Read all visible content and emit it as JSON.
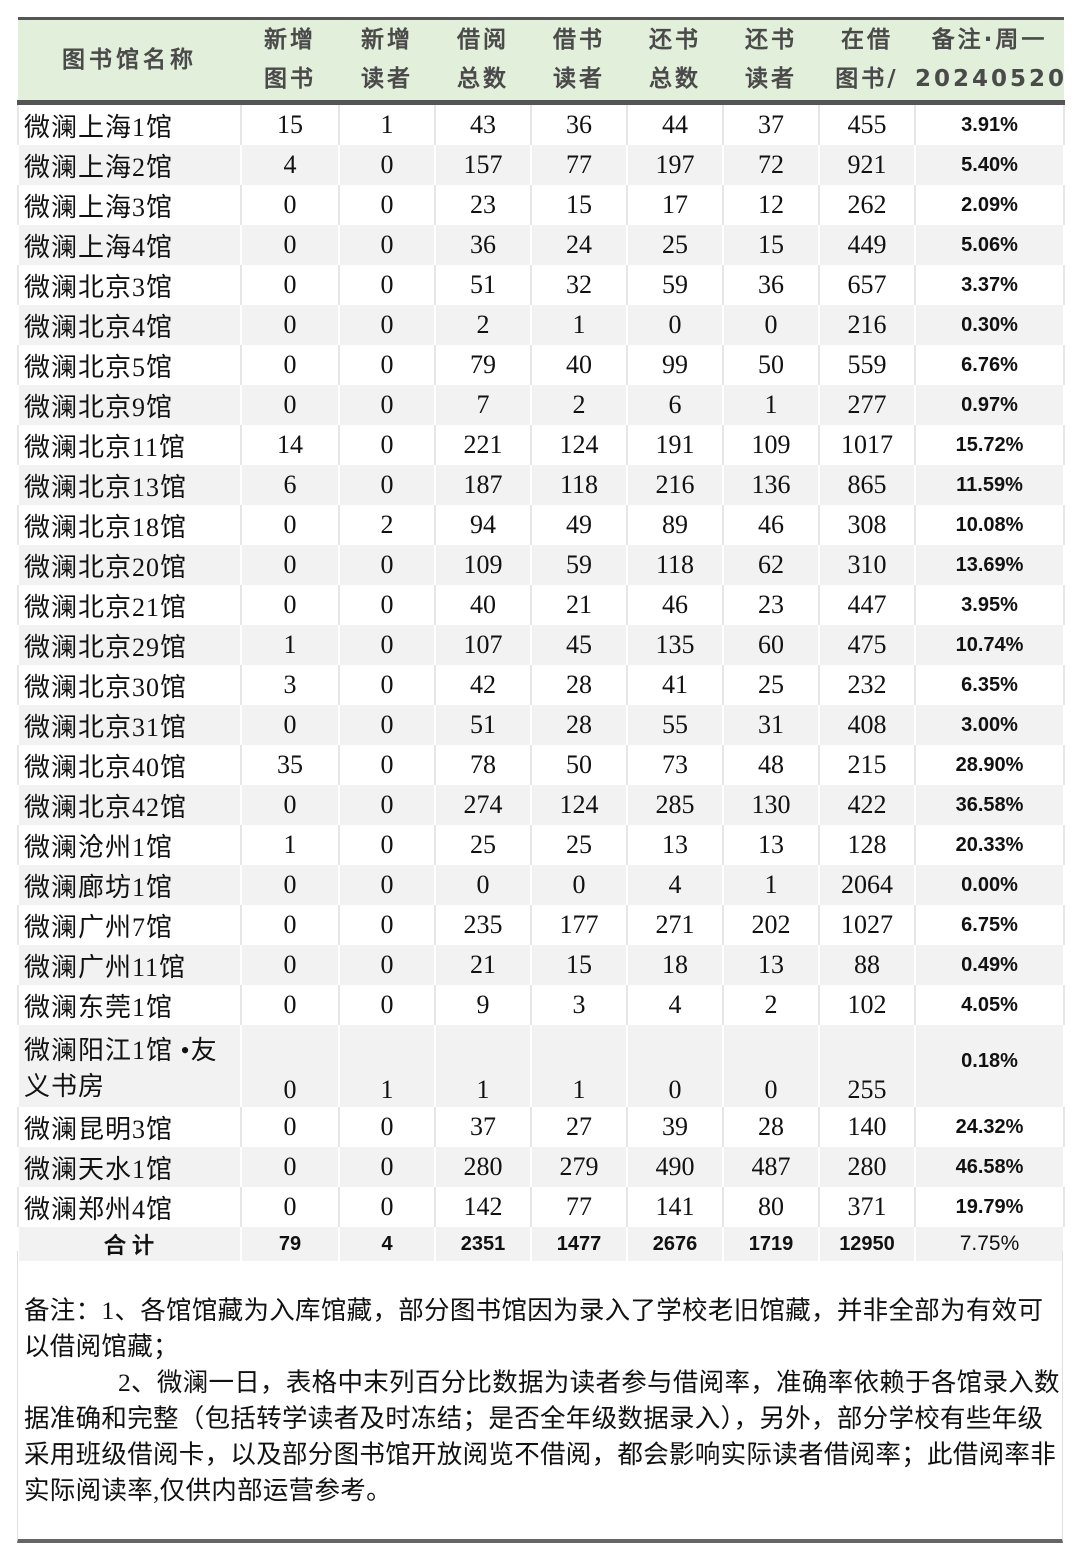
{
  "table": {
    "headers": [
      [
        "图书馆名称"
      ],
      [
        "新增",
        "图书"
      ],
      [
        "新增",
        "读者"
      ],
      [
        "借阅",
        "总数"
      ],
      [
        "借书",
        "读者"
      ],
      [
        "还书",
        "总数"
      ],
      [
        "还书",
        "读者"
      ],
      [
        "在借",
        "图书/"
      ],
      [
        "备注·周一",
        "20240520"
      ]
    ],
    "rows": [
      [
        "微澜上海1馆",
        "15",
        "1",
        "43",
        "36",
        "44",
        "37",
        "455",
        "3.91%"
      ],
      [
        "微澜上海2馆",
        "4",
        "0",
        "157",
        "77",
        "197",
        "72",
        "921",
        "5.40%"
      ],
      [
        "微澜上海3馆",
        "0",
        "0",
        "23",
        "15",
        "17",
        "12",
        "262",
        "2.09%"
      ],
      [
        "微澜上海4馆",
        "0",
        "0",
        "36",
        "24",
        "25",
        "15",
        "449",
        "5.06%"
      ],
      [
        "微澜北京3馆",
        "0",
        "0",
        "51",
        "32",
        "59",
        "36",
        "657",
        "3.37%"
      ],
      [
        "微澜北京4馆",
        "0",
        "0",
        "2",
        "1",
        "0",
        "0",
        "216",
        "0.30%"
      ],
      [
        "微澜北京5馆",
        "0",
        "0",
        "79",
        "40",
        "99",
        "50",
        "559",
        "6.76%"
      ],
      [
        "微澜北京9馆",
        "0",
        "0",
        "7",
        "2",
        "6",
        "1",
        "277",
        "0.97%"
      ],
      [
        "微澜北京11馆",
        "14",
        "0",
        "221",
        "124",
        "191",
        "109",
        "1017",
        "15.72%"
      ],
      [
        "微澜北京13馆",
        "6",
        "0",
        "187",
        "118",
        "216",
        "136",
        "865",
        "11.59%"
      ],
      [
        "微澜北京18馆",
        "0",
        "2",
        "94",
        "49",
        "89",
        "46",
        "308",
        "10.08%"
      ],
      [
        "微澜北京20馆",
        "0",
        "0",
        "109",
        "59",
        "118",
        "62",
        "310",
        "13.69%"
      ],
      [
        "微澜北京21馆",
        "0",
        "0",
        "40",
        "21",
        "46",
        "23",
        "447",
        "3.95%"
      ],
      [
        "微澜北京29馆",
        "1",
        "0",
        "107",
        "45",
        "135",
        "60",
        "475",
        "10.74%"
      ],
      [
        "微澜北京30馆",
        "3",
        "0",
        "42",
        "28",
        "41",
        "25",
        "232",
        "6.35%"
      ],
      [
        "微澜北京31馆",
        "0",
        "0",
        "51",
        "28",
        "55",
        "31",
        "408",
        "3.00%"
      ],
      [
        "微澜北京40馆",
        "35",
        "0",
        "78",
        "50",
        "73",
        "48",
        "215",
        "28.90%"
      ],
      [
        "微澜北京42馆",
        "0",
        "0",
        "274",
        "124",
        "285",
        "130",
        "422",
        "36.58%"
      ],
      [
        "微澜沧州1馆",
        "1",
        "0",
        "25",
        "25",
        "13",
        "13",
        "128",
        "20.33%"
      ],
      [
        "微澜廊坊1馆",
        "0",
        "0",
        "0",
        "0",
        "4",
        "1",
        "2064",
        "0.00%"
      ],
      [
        "微澜广州7馆",
        "0",
        "0",
        "235",
        "177",
        "271",
        "202",
        "1027",
        "6.75%"
      ],
      [
        "微澜广州11馆",
        "0",
        "0",
        "21",
        "15",
        "18",
        "13",
        "88",
        "0.49%"
      ],
      [
        "微澜东莞1馆",
        "0",
        "0",
        "9",
        "3",
        "4",
        "2",
        "102",
        "4.05%"
      ],
      [
        "微澜阳江1馆 •友义书房",
        "0",
        "1",
        "1",
        "1",
        "0",
        "0",
        "255",
        "0.18%"
      ],
      [
        "微澜昆明3馆",
        "0",
        "0",
        "37",
        "27",
        "39",
        "28",
        "140",
        "24.32%"
      ],
      [
        "微澜天水1馆",
        "0",
        "0",
        "280",
        "279",
        "490",
        "487",
        "280",
        "46.58%"
      ],
      [
        "微澜郑州4馆",
        "0",
        "0",
        "142",
        "77",
        "141",
        "80",
        "371",
        "19.79%"
      ]
    ],
    "total": [
      "合计",
      "79",
      "4",
      "2351",
      "1477",
      "2676",
      "1719",
      "12950",
      "7.75%"
    ]
  },
  "notes": {
    "line1": "备注：1、各馆馆藏为入库馆藏，部分图书馆因为录入了学校老旧馆藏，并非全部为有效可以借阅馆藏；",
    "line2": "2、微澜一日，表格中末列百分比数据为读者参与借阅率，准确率依赖于各馆录入数据准确和完整（包括转学读者及时冻结；是否全年级数据录入），另外，部分学校有些年级采用班级借阅卡，以及部分图书馆开放阅览不借阅，都会影响实际读者借阅率；此借阅率非实际阅读率,仅供内部运营参考。"
  },
  "colors": {
    "header_bg": "#e2efda",
    "stripe_bg": "#f2f2f2",
    "rule": "#555555"
  }
}
